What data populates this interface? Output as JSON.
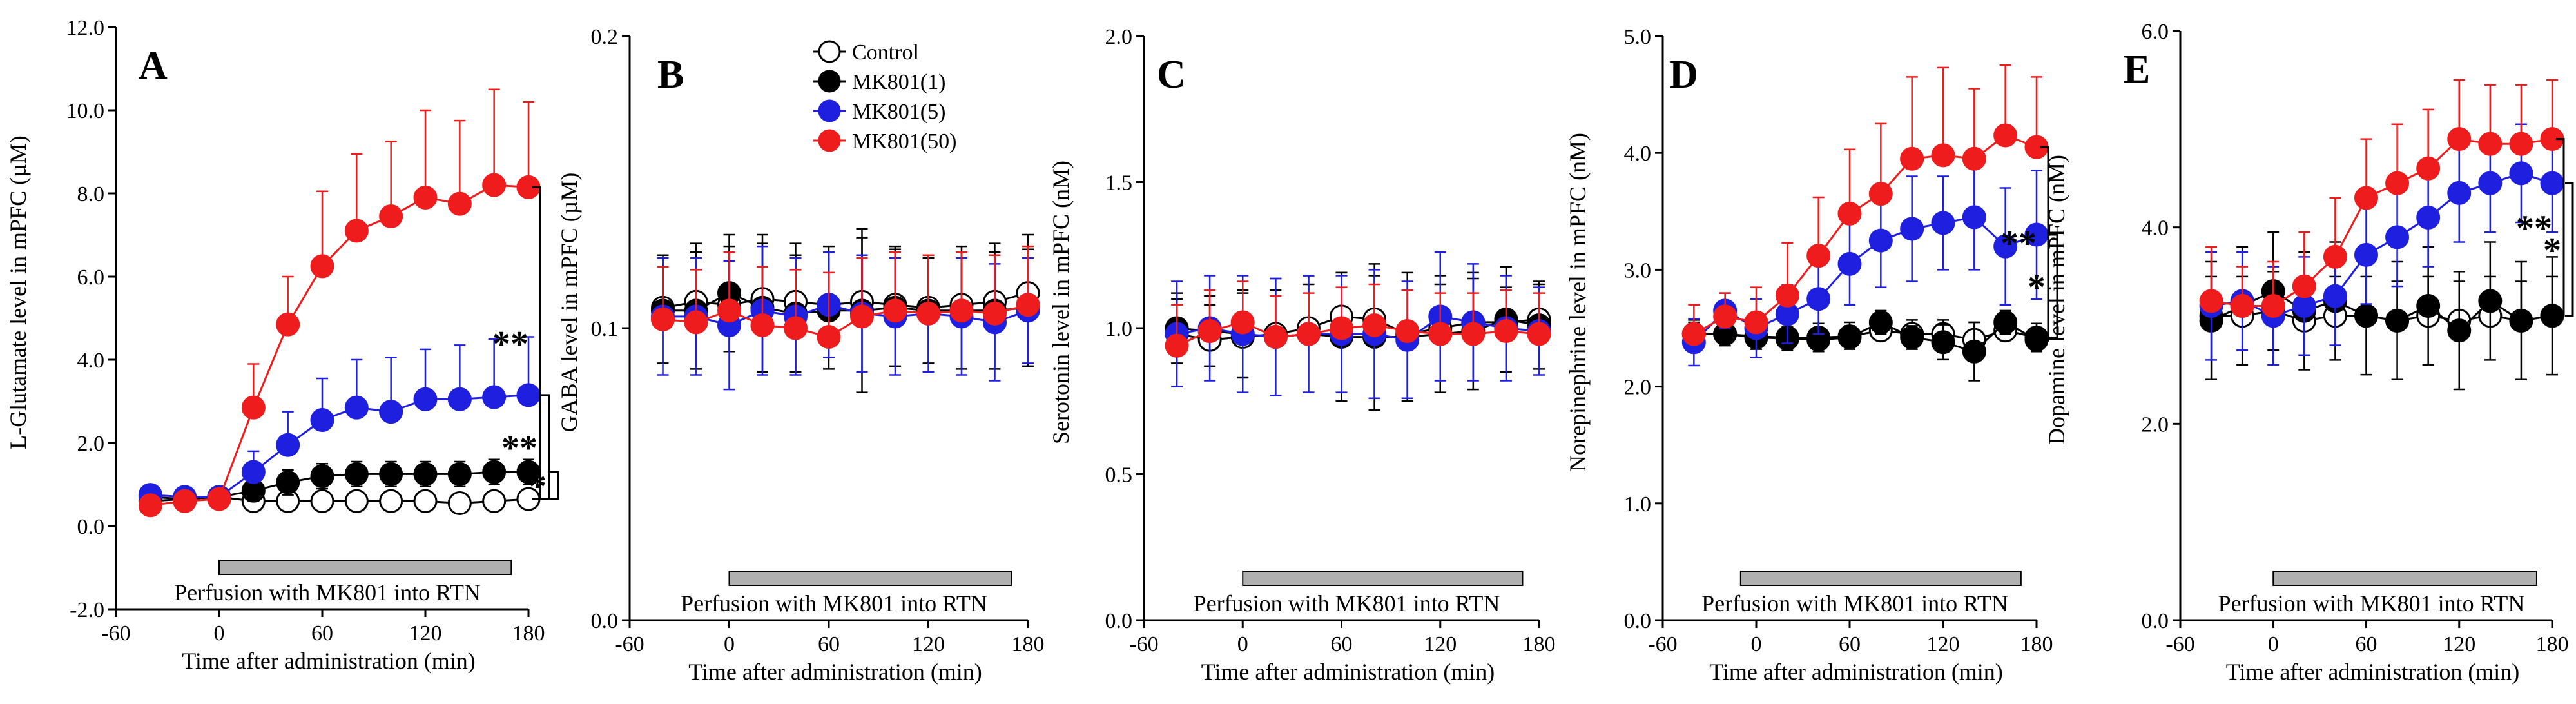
{
  "figure_title": "",
  "colors": {
    "control": "#ffffff",
    "mk801_1": "#000000",
    "mk801_5": "#1f1fe0",
    "mk801_50": "#ee1c1c",
    "perfusion_bar": "#b0b0b0",
    "axis": "#000000"
  },
  "legend": {
    "items": [
      {
        "key": "control",
        "label": "Control"
      },
      {
        "key": "mk801_1",
        "label": "MK801(1)"
      },
      {
        "key": "mk801_5",
        "label": "MK801(5)"
      },
      {
        "key": "mk801_50",
        "label": "MK801(50)"
      }
    ]
  },
  "chart_data": [
    {
      "type": "line",
      "panel": "A",
      "ylabel": "L-Glutamate level in mPFC (µM)",
      "xlabel": "Time after administration (min)",
      "xlim": [
        -60,
        180
      ],
      "xticks": [
        -60,
        0,
        60,
        120,
        180
      ],
      "ylim": [
        -2,
        12
      ],
      "yticks": [
        -2,
        0,
        2,
        4,
        6,
        8,
        10,
        12
      ],
      "ytick_labels": [
        "-2.0",
        "0.0",
        "2.0",
        "4.0",
        "6.0",
        "8.0",
        "10.0",
        "12.0"
      ],
      "perfusion_label": "Perfusion with MK801 into RTN",
      "perfusion_range": [
        0,
        170
      ],
      "x": [
        -40,
        -20,
        0,
        20,
        40,
        60,
        80,
        100,
        120,
        140,
        160,
        180
      ],
      "series": [
        {
          "key": "control",
          "name": "Control",
          "values": [
            0.7,
            0.65,
            0.7,
            0.6,
            0.6,
            0.6,
            0.6,
            0.6,
            0.6,
            0.55,
            0.6,
            0.65
          ],
          "err": [
            0.15,
            0.15,
            0.15,
            0.15,
            0.15,
            0.15,
            0.15,
            0.15,
            0.15,
            0.15,
            0.15,
            0.15
          ]
        },
        {
          "key": "mk801_1",
          "name": "MK801(1)",
          "values": [
            0.6,
            0.65,
            0.7,
            0.85,
            1.05,
            1.2,
            1.25,
            1.25,
            1.25,
            1.25,
            1.3,
            1.3
          ],
          "err": [
            0.2,
            0.2,
            0.2,
            0.25,
            0.3,
            0.3,
            0.3,
            0.3,
            0.3,
            0.3,
            0.3,
            0.3
          ]
        },
        {
          "key": "mk801_5",
          "name": "MK801(5)",
          "values": [
            0.75,
            0.7,
            0.7,
            1.3,
            1.95,
            2.55,
            2.85,
            2.75,
            3.05,
            3.05,
            3.1,
            3.15
          ],
          "err": [
            0.2,
            0.2,
            0.2,
            0.5,
            0.8,
            1.0,
            1.15,
            1.3,
            1.2,
            1.3,
            1.4,
            1.4
          ]
        },
        {
          "key": "mk801_50",
          "name": "MK801(50)",
          "values": [
            0.5,
            0.6,
            0.65,
            2.85,
            4.85,
            6.25,
            7.1,
            7.45,
            7.9,
            7.75,
            8.2,
            8.15
          ],
          "err": [
            0.2,
            0.2,
            0.2,
            1.05,
            1.15,
            1.8,
            1.85,
            1.8,
            2.1,
            2.0,
            2.3,
            2.05
          ]
        }
      ],
      "significance": [
        {
          "label": "**",
          "between": [
            "mk801_50",
            "control"
          ]
        },
        {
          "label": "**",
          "between": [
            "mk801_5",
            "control"
          ]
        },
        {
          "label": "*",
          "between": [
            "mk801_1",
            "control"
          ]
        }
      ]
    },
    {
      "type": "line",
      "panel": "B",
      "ylabel": "GABA level in mPFC (µM)",
      "xlabel": "Time after administration (min)",
      "xlim": [
        -60,
        180
      ],
      "xticks": [
        -60,
        0,
        60,
        120,
        180
      ],
      "ylim": [
        0,
        0.2
      ],
      "yticks": [
        0,
        0.1,
        0.2
      ],
      "ytick_labels": [
        "0.0",
        "0.1",
        "0.2"
      ],
      "perfusion_label": "Perfusion with MK801 into RTN",
      "perfusion_range": [
        0,
        170
      ],
      "x": [
        -40,
        -20,
        0,
        20,
        40,
        60,
        80,
        100,
        120,
        140,
        160,
        180
      ],
      "series": [
        {
          "key": "control",
          "name": "Control",
          "values": [
            0.107,
            0.109,
            0.108,
            0.11,
            0.109,
            0.108,
            0.109,
            0.108,
            0.107,
            0.108,
            0.109,
            0.112
          ],
          "err": [
            0.018,
            0.02,
            0.02,
            0.022,
            0.02,
            0.02,
            0.022,
            0.02,
            0.018,
            0.02,
            0.02,
            0.02
          ]
        },
        {
          "key": "mk801_1",
          "name": "MK801(1)",
          "values": [
            0.106,
            0.106,
            0.112,
            0.107,
            0.105,
            0.106,
            0.106,
            0.107,
            0.106,
            0.106,
            0.106,
            0.107
          ],
          "err": [
            0.018,
            0.02,
            0.02,
            0.022,
            0.02,
            0.02,
            0.028,
            0.02,
            0.018,
            0.02,
            0.02,
            0.02
          ]
        },
        {
          "key": "mk801_5",
          "name": "MK801(5)",
          "values": [
            0.104,
            0.104,
            0.101,
            0.106,
            0.104,
            0.108,
            0.105,
            0.104,
            0.105,
            0.104,
            0.102,
            0.106
          ],
          "err": [
            0.02,
            0.02,
            0.022,
            0.022,
            0.02,
            0.018,
            0.02,
            0.02,
            0.02,
            0.02,
            0.02,
            0.018
          ]
        },
        {
          "key": "mk801_50",
          "name": "MK801(50)",
          "values": [
            0.103,
            0.102,
            0.106,
            0.101,
            0.1,
            0.097,
            0.104,
            0.106,
            0.105,
            0.106,
            0.105,
            0.108
          ],
          "err": [
            0.018,
            0.018,
            0.02,
            0.02,
            0.02,
            0.022,
            0.02,
            0.02,
            0.02,
            0.02,
            0.02,
            0.02
          ]
        }
      ],
      "significance": []
    },
    {
      "type": "line",
      "panel": "C",
      "ylabel": "Serotonin level in mPFC (nM)",
      "xlabel": "Time after administration (min)",
      "xlim": [
        -60,
        180
      ],
      "xticks": [
        -60,
        0,
        60,
        120,
        180
      ],
      "ylim": [
        0,
        2
      ],
      "yticks": [
        0,
        0.5,
        1,
        1.5,
        2
      ],
      "ytick_labels": [
        "0.0",
        "0.5",
        "1.0",
        "1.5",
        "2.0"
      ],
      "perfusion_label": "Perfusion with MK801 into RTN",
      "perfusion_range": [
        0,
        170
      ],
      "x": [
        -40,
        -20,
        0,
        20,
        40,
        60,
        80,
        100,
        120,
        140,
        160,
        180
      ],
      "series": [
        {
          "key": "control",
          "name": "Control",
          "values": [
            0.98,
            0.96,
            0.97,
            0.98,
            1.0,
            1.04,
            1.03,
            0.98,
            1.0,
            1.02,
            1.02,
            1.03
          ],
          "err": [
            0.12,
            0.12,
            0.15,
            0.15,
            0.15,
            0.15,
            0.15,
            0.15,
            0.15,
            0.15,
            0.12,
            0.12
          ]
        },
        {
          "key": "mk801_1",
          "name": "MK801(1)",
          "values": [
            1.0,
            0.99,
            0.98,
            0.97,
            0.98,
            0.97,
            0.97,
            0.97,
            0.98,
            0.99,
            1.03,
            1.01
          ],
          "err": [
            0.12,
            0.12,
            0.15,
            0.2,
            0.2,
            0.22,
            0.25,
            0.22,
            0.2,
            0.2,
            0.18,
            0.15
          ]
        },
        {
          "key": "mk801_5",
          "name": "MK801(5)",
          "values": [
            0.98,
            1.0,
            0.98,
            0.97,
            0.98,
            0.98,
            0.98,
            0.96,
            1.04,
            1.02,
            1.0,
            0.99
          ],
          "err": [
            0.18,
            0.18,
            0.2,
            0.2,
            0.2,
            0.2,
            0.22,
            0.2,
            0.22,
            0.2,
            0.18,
            0.15
          ]
        },
        {
          "key": "mk801_50",
          "name": "MK801(50)",
          "values": [
            0.94,
            0.99,
            1.02,
            0.97,
            0.98,
            1.0,
            1.01,
            0.99,
            0.98,
            0.98,
            0.99,
            0.98
          ],
          "err": [
            0.14,
            0.14,
            0.14,
            0.14,
            0.14,
            0.14,
            0.14,
            0.14,
            0.14,
            0.14,
            0.14,
            0.14
          ]
        }
      ],
      "significance": []
    },
    {
      "type": "line",
      "panel": "D",
      "ylabel": "Norepinephrine level in mPFC (nM)",
      "xlabel": "Time after administration (min)",
      "xlim": [
        -60,
        180
      ],
      "xticks": [
        -60,
        0,
        60,
        120,
        180
      ],
      "ylim": [
        0,
        5
      ],
      "yticks": [
        0,
        1,
        2,
        3,
        4,
        5
      ],
      "ytick_labels": [
        "0.0",
        "1.0",
        "2.0",
        "3.0",
        "4.0",
        "5.0"
      ],
      "perfusion_label": "Perfusion with MK801 into RTN",
      "perfusion_range": [
        -10,
        170
      ],
      "x": [
        -40,
        -20,
        0,
        20,
        40,
        60,
        80,
        100,
        120,
        140,
        160,
        180
      ],
      "series": [
        {
          "key": "control",
          "name": "Control",
          "values": [
            2.45,
            2.45,
            2.43,
            2.42,
            2.42,
            2.43,
            2.48,
            2.45,
            2.45,
            2.4,
            2.48,
            2.42
          ],
          "err": [
            0.12,
            0.12,
            0.12,
            0.12,
            0.12,
            0.12,
            0.12,
            0.12,
            0.12,
            0.15,
            0.12,
            0.12
          ]
        },
        {
          "key": "mk801_1",
          "name": "MK801(1)",
          "values": [
            2.45,
            2.45,
            2.42,
            2.41,
            2.4,
            2.42,
            2.55,
            2.42,
            2.38,
            2.3,
            2.55,
            2.4
          ],
          "err": [
            0.1,
            0.1,
            0.1,
            0.1,
            0.1,
            0.1,
            0.1,
            0.1,
            0.15,
            0.25,
            0.1,
            0.1
          ]
        },
        {
          "key": "mk801_5",
          "name": "MK801(5)",
          "values": [
            2.38,
            2.65,
            2.5,
            2.62,
            2.75,
            3.05,
            3.25,
            3.35,
            3.4,
            3.45,
            3.2,
            3.3
          ],
          "err": [
            0.2,
            0.15,
            0.25,
            0.25,
            0.3,
            0.35,
            0.4,
            0.45,
            0.4,
            0.45,
            0.5,
            0.55
          ]
        },
        {
          "key": "mk801_50",
          "name": "MK801(50)",
          "values": [
            2.45,
            2.6,
            2.55,
            2.78,
            3.12,
            3.48,
            3.65,
            3.95,
            3.98,
            3.95,
            4.15,
            4.05
          ],
          "err": [
            0.25,
            0.2,
            0.3,
            0.45,
            0.5,
            0.55,
            0.6,
            0.7,
            0.75,
            0.6,
            0.6,
            0.6
          ]
        }
      ],
      "significance": [
        {
          "label": "**",
          "between": [
            "mk801_50",
            "control"
          ]
        },
        {
          "label": "*",
          "between": [
            "mk801_5",
            "control"
          ]
        }
      ]
    },
    {
      "type": "line",
      "panel": "E",
      "ylabel": "Dopamine level in mPFC (nM)",
      "xlabel": "Time after administration (min)",
      "xlim": [
        -60,
        180
      ],
      "xticks": [
        -60,
        0,
        60,
        120,
        180
      ],
      "ylim": [
        0,
        6
      ],
      "yticks": [
        0,
        2,
        4,
        6
      ],
      "ytick_labels": [
        "0.0",
        "2.0",
        "4.0",
        "6.0"
      ],
      "perfusion_label": "Perfusion with MK801 into RTN",
      "perfusion_range": [
        0,
        170
      ],
      "x": [
        -40,
        -20,
        0,
        20,
        40,
        60,
        80,
        100,
        120,
        140,
        160,
        180
      ],
      "series": [
        {
          "key": "control",
          "name": "Control",
          "values": [
            3.1,
            3.1,
            3.15,
            3.05,
            3.1,
            3.1,
            3.05,
            3.1,
            3.05,
            3.1,
            3.05,
            3.1
          ],
          "err": [
            0.4,
            0.4,
            0.4,
            0.4,
            0.4,
            0.4,
            0.4,
            0.4,
            0.4,
            0.4,
            0.4,
            0.4
          ]
        },
        {
          "key": "mk801_1",
          "name": "MK801(1)",
          "values": [
            3.05,
            3.2,
            3.35,
            3.15,
            3.25,
            3.1,
            3.05,
            3.2,
            2.95,
            3.25,
            3.05,
            3.1
          ],
          "err": [
            0.6,
            0.6,
            0.6,
            0.6,
            0.6,
            0.6,
            0.6,
            0.6,
            0.6,
            0.6,
            0.6,
            0.6
          ]
        },
        {
          "key": "mk801_5",
          "name": "MK801(5)",
          "values": [
            3.2,
            3.25,
            3.1,
            3.2,
            3.3,
            3.72,
            3.9,
            4.1,
            4.35,
            4.45,
            4.55,
            4.45
          ],
          "err": [
            0.55,
            0.5,
            0.5,
            0.5,
            0.5,
            0.5,
            0.5,
            0.5,
            0.5,
            0.5,
            0.5,
            0.5
          ]
        },
        {
          "key": "mk801_50",
          "name": "MK801(50)",
          "values": [
            3.25,
            3.2,
            3.2,
            3.4,
            3.7,
            4.3,
            4.45,
            4.6,
            4.9,
            4.85,
            4.85,
            4.9
          ],
          "err": [
            0.55,
            0.4,
            0.45,
            0.55,
            0.6,
            0.6,
            0.6,
            0.6,
            0.6,
            0.6,
            0.6,
            0.6
          ]
        }
      ],
      "significance": [
        {
          "label": "**",
          "between": [
            "mk801_50",
            "control"
          ]
        },
        {
          "label": "*",
          "between": [
            "mk801_5",
            "control"
          ]
        }
      ]
    }
  ]
}
